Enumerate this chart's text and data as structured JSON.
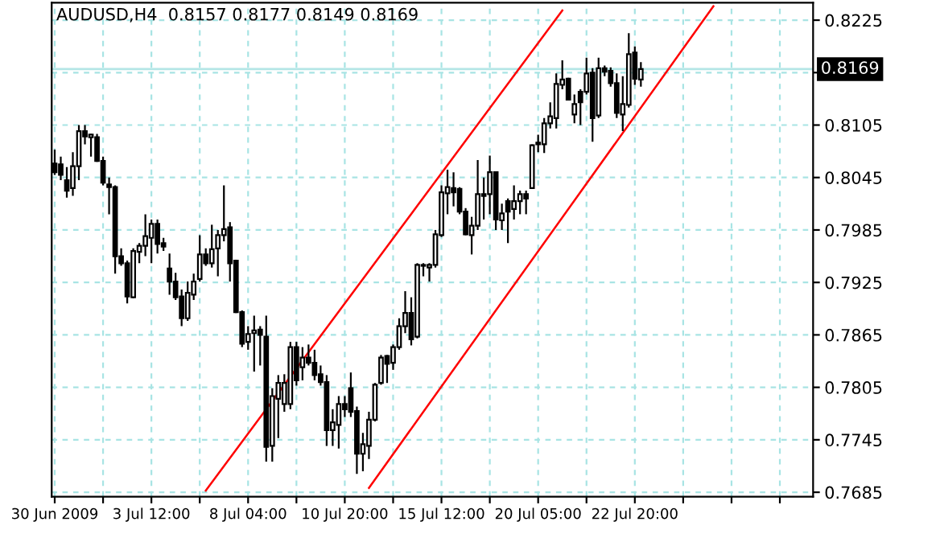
{
  "chart_data": {
    "type": "candlestick",
    "title": "AUDUSD,H4  0.8157 0.8177 0.8149 0.8169",
    "categories": [
      "30 Jun 2009",
      null,
      null,
      null,
      null,
      null,
      null,
      null,
      null,
      null,
      null,
      null,
      null,
      null,
      null,
      null,
      "3 Jul 12:00",
      null,
      null,
      null,
      null,
      null,
      null,
      null,
      null,
      null,
      null,
      null,
      null,
      null,
      null,
      null,
      "8 Jul 04:00",
      null,
      null,
      null,
      null,
      null,
      null,
      null,
      null,
      null,
      null,
      null,
      null,
      null,
      null,
      null,
      "10 Jul 20:00",
      null,
      null,
      null,
      null,
      null,
      null,
      null,
      null,
      null,
      null,
      null,
      null,
      null,
      null,
      null,
      "15 Jul 12:00",
      null,
      null,
      null,
      null,
      null,
      null,
      null,
      null,
      null,
      null,
      null,
      null,
      null,
      null,
      null,
      "20 Jul 05:00",
      null,
      null,
      null,
      null,
      null,
      null,
      null,
      null,
      null,
      null,
      null,
      null,
      null,
      null,
      null,
      "22 Jul 20:00",
      null,
      null,
      null,
      null,
      null,
      null,
      null,
      null,
      null,
      null,
      null,
      null,
      null,
      null,
      null,
      null,
      null,
      null,
      null,
      null,
      null,
      null,
      null,
      null,
      null,
      null,
      null,
      null,
      null
    ],
    "ohlc": [
      [
        0.8061,
        0.8077,
        0.8048,
        0.8051
      ],
      [
        0.806,
        0.8069,
        0.8042,
        0.8048
      ],
      [
        0.8042,
        0.8057,
        0.8022,
        0.803
      ],
      [
        0.8033,
        0.8074,
        0.8024,
        0.8058
      ],
      [
        0.8058,
        0.8105,
        0.8042,
        0.8098
      ],
      [
        0.8098,
        0.8105,
        0.8083,
        0.8092
      ],
      [
        0.8091,
        0.8095,
        0.8069,
        0.8094
      ],
      [
        0.8091,
        0.8095,
        0.8063,
        0.8064
      ],
      [
        0.8064,
        0.8069,
        0.8036,
        0.8039
      ],
      [
        0.8037,
        0.8045,
        0.8003,
        0.8034
      ],
      [
        0.8034,
        0.8036,
        0.7935,
        0.7955
      ],
      [
        0.7955,
        0.7964,
        0.7944,
        0.7947
      ],
      [
        0.7947,
        0.795,
        0.7901,
        0.7909
      ],
      [
        0.7908,
        0.7964,
        0.7907,
        0.7961
      ],
      [
        0.796,
        0.797,
        0.7947,
        0.7967
      ],
      [
        0.7967,
        0.8003,
        0.7955,
        0.7978
      ],
      [
        0.7976,
        0.7997,
        0.7947,
        0.7992
      ],
      [
        0.7992,
        0.7997,
        0.7958,
        0.7969
      ],
      [
        0.797,
        0.7976,
        0.7961,
        0.7966
      ],
      [
        0.7941,
        0.7958,
        0.7911,
        0.7926
      ],
      [
        0.7926,
        0.7936,
        0.7905,
        0.7908
      ],
      [
        0.7909,
        0.7917,
        0.7875,
        0.7884
      ],
      [
        0.7884,
        0.7926,
        0.7881,
        0.7913
      ],
      [
        0.7911,
        0.7935,
        0.7905,
        0.7926
      ],
      [
        0.7929,
        0.7979,
        0.7926,
        0.7957
      ],
      [
        0.7957,
        0.7964,
        0.7944,
        0.7947
      ],
      [
        0.7947,
        0.7991,
        0.7942,
        0.7963
      ],
      [
        0.7964,
        0.7985,
        0.7932,
        0.7979
      ],
      [
        0.7979,
        0.8036,
        0.7972,
        0.7986
      ],
      [
        0.7988,
        0.7994,
        0.7926,
        0.7947
      ],
      [
        0.795,
        0.7951,
        0.789,
        0.7891
      ],
      [
        0.7891,
        0.7893,
        0.7851,
        0.7855
      ],
      [
        0.7857,
        0.7875,
        0.7848,
        0.7866
      ],
      [
        0.7867,
        0.7887,
        0.7823,
        0.787
      ],
      [
        0.7871,
        0.7875,
        0.783,
        0.7865
      ],
      [
        0.7863,
        0.7887,
        0.772,
        0.7737
      ],
      [
        0.7738,
        0.7804,
        0.772,
        0.7795
      ],
      [
        0.7792,
        0.7819,
        0.7747,
        0.781
      ],
      [
        0.7786,
        0.782,
        0.7777,
        0.781
      ],
      [
        0.7786,
        0.7857,
        0.778,
        0.7851
      ],
      [
        0.7851,
        0.7857,
        0.7807,
        0.7813
      ],
      [
        0.7828,
        0.7851,
        0.7813,
        0.7839
      ],
      [
        0.7839,
        0.7854,
        0.783,
        0.7833
      ],
      [
        0.7833,
        0.7848,
        0.7813,
        0.7819
      ],
      [
        0.782,
        0.783,
        0.7807,
        0.7811
      ],
      [
        0.7811,
        0.7819,
        0.7738,
        0.7756
      ],
      [
        0.7756,
        0.778,
        0.7738,
        0.7765
      ],
      [
        0.7762,
        0.7795,
        0.7735,
        0.7786
      ],
      [
        0.7786,
        0.7795,
        0.7771,
        0.778
      ],
      [
        0.7804,
        0.7822,
        0.7771,
        0.7777
      ],
      [
        0.7778,
        0.7783,
        0.7706,
        0.7729
      ],
      [
        0.7729,
        0.7753,
        0.7709,
        0.774
      ],
      [
        0.7738,
        0.7777,
        0.7723,
        0.7768
      ],
      [
        0.7768,
        0.781,
        0.7766,
        0.7808
      ],
      [
        0.781,
        0.7842,
        0.7808,
        0.7839
      ],
      [
        0.7841,
        0.7842,
        0.781,
        0.7832
      ],
      [
        0.7833,
        0.7854,
        0.7825,
        0.7851
      ],
      [
        0.7851,
        0.7884,
        0.7848,
        0.7875
      ],
      [
        0.7875,
        0.7915,
        0.7867,
        0.789
      ],
      [
        0.789,
        0.7908,
        0.7853,
        0.786
      ],
      [
        0.7863,
        0.7947,
        0.7861,
        0.7945
      ],
      [
        0.7944,
        0.7947,
        0.7932,
        0.7945
      ],
      [
        0.7942,
        0.7947,
        0.7926,
        0.7945
      ],
      [
        0.7945,
        0.7985,
        0.7942,
        0.798
      ],
      [
        0.7979,
        0.8036,
        0.7977,
        0.8028
      ],
      [
        0.8027,
        0.8054,
        0.8003,
        0.8034
      ],
      [
        0.8033,
        0.8051,
        0.8012,
        0.8028
      ],
      [
        0.8032,
        0.8034,
        0.8003,
        0.8006
      ],
      [
        0.8006,
        0.801,
        0.7979,
        0.798
      ],
      [
        0.7979,
        0.8,
        0.7957,
        0.799
      ],
      [
        0.799,
        0.8065,
        0.7985,
        0.8026
      ],
      [
        0.8026,
        0.8045,
        0.7997,
        0.8024
      ],
      [
        0.8026,
        0.807,
        0.8003,
        0.8051
      ],
      [
        0.8051,
        0.8052,
        0.7985,
        0.7997
      ],
      [
        0.7996,
        0.8015,
        0.7985,
        0.8004
      ],
      [
        0.8018,
        0.8021,
        0.797,
        0.8006
      ],
      [
        0.8009,
        0.8036,
        0.7997,
        0.8018
      ],
      [
        0.8018,
        0.803,
        0.8003,
        0.8026
      ],
      [
        0.8026,
        0.803,
        0.8003,
        0.8021
      ],
      [
        0.8033,
        0.8083,
        0.8032,
        0.8082
      ],
      [
        0.8083,
        0.8094,
        0.8074,
        0.8085
      ],
      [
        0.8083,
        0.8113,
        0.8073,
        0.8107
      ],
      [
        0.8107,
        0.8131,
        0.8101,
        0.8115
      ],
      [
        0.8113,
        0.8164,
        0.8101,
        0.8152
      ],
      [
        0.8151,
        0.8179,
        0.8146,
        0.8157
      ],
      [
        0.8158,
        0.8159,
        0.8133,
        0.8134
      ],
      [
        0.8117,
        0.814,
        0.8107,
        0.8129
      ],
      [
        0.8143,
        0.8146,
        0.8105,
        0.8131
      ],
      [
        0.8143,
        0.8182,
        0.814,
        0.8164
      ],
      [
        0.8165,
        0.817,
        0.8086,
        0.8113
      ],
      [
        0.8116,
        0.8182,
        0.8113,
        0.817
      ],
      [
        0.817,
        0.8173,
        0.8161,
        0.8166
      ],
      [
        0.8167,
        0.8171,
        0.8149,
        0.8153
      ],
      [
        0.8153,
        0.8164,
        0.8113,
        0.8119
      ],
      [
        0.8117,
        0.8161,
        0.8098,
        0.8129
      ],
      [
        0.8128,
        0.821,
        0.8125,
        0.8186
      ],
      [
        0.8188,
        0.8195,
        0.8151,
        0.8158
      ],
      [
        0.8157,
        0.8177,
        0.8149,
        0.8169
      ],
      null,
      null,
      null,
      null,
      null,
      null,
      null,
      null,
      null,
      null,
      null,
      null,
      null,
      null,
      null,
      null,
      null,
      null,
      null,
      null,
      null,
      null,
      null,
      null,
      null,
      null,
      null,
      null
    ],
    "series": [
      {
        "type": "line",
        "color": "#ff0000",
        "values": [
          null,
          null,
          null,
          null,
          null,
          null,
          null,
          null,
          null,
          null,
          null,
          null,
          null,
          null,
          null,
          null,
          null,
          null,
          null,
          null,
          null,
          null,
          null,
          null,
          null,
          0.7687,
          null,
          null,
          null,
          null,
          null,
          null,
          null,
          null,
          null,
          null,
          null,
          null,
          null,
          null,
          null,
          null,
          null,
          null,
          null,
          null,
          null,
          null,
          null,
          null,
          null,
          null,
          null,
          null,
          null,
          null,
          null,
          null,
          null,
          null,
          null,
          null,
          null,
          null,
          null,
          null,
          null,
          null,
          null,
          null,
          null,
          null,
          null,
          null,
          null,
          null,
          null,
          null,
          null,
          null,
          null,
          null,
          null,
          null,
          0.8236,
          null,
          null,
          null,
          null,
          null,
          null,
          null,
          null,
          null,
          null,
          null,
          null,
          null,
          null,
          null,
          null,
          null,
          null,
          null,
          null,
          null,
          null,
          null,
          null,
          null,
          null,
          null,
          null,
          null,
          null,
          null,
          null,
          null,
          null,
          null,
          null,
          null,
          null,
          null,
          null,
          null
        ]
      },
      {
        "type": "line",
        "color": "#ff0000",
        "values": [
          null,
          null,
          null,
          null,
          null,
          null,
          null,
          null,
          null,
          null,
          null,
          null,
          null,
          null,
          null,
          null,
          null,
          null,
          null,
          null,
          null,
          null,
          null,
          null,
          null,
          null,
          null,
          null,
          null,
          null,
          null,
          null,
          null,
          null,
          null,
          null,
          null,
          null,
          null,
          null,
          null,
          null,
          null,
          null,
          null,
          null,
          null,
          null,
          null,
          null,
          null,
          null,
          0.769,
          null,
          null,
          null,
          null,
          null,
          null,
          null,
          null,
          null,
          null,
          null,
          null,
          null,
          null,
          null,
          null,
          null,
          null,
          null,
          null,
          null,
          null,
          null,
          null,
          null,
          null,
          null,
          null,
          null,
          null,
          null,
          null,
          null,
          null,
          null,
          null,
          null,
          null,
          null,
          null,
          null,
          null,
          null,
          null,
          null,
          null,
          null,
          null,
          null,
          null,
          null,
          null,
          null,
          null,
          null,
          null,
          0.8241,
          null,
          null,
          null,
          null,
          null,
          null,
          null,
          null,
          null,
          null,
          null,
          null,
          null,
          null,
          null,
          null
        ]
      }
    ],
    "ylim": [
      0.768,
      0.8245
    ],
    "yticks": [
      0.7685,
      0.7745,
      0.7805,
      0.7865,
      0.7925,
      0.7985,
      0.8045,
      0.8105,
      {
        "value": 0.8165,
        "label": null
      },
      0.8225
    ],
    "ref_lines": [
      {
        "axis": "y",
        "value": 0.8169,
        "label": "0.8169",
        "color": "#b4e6e6"
      }
    ],
    "grid": true
  }
}
